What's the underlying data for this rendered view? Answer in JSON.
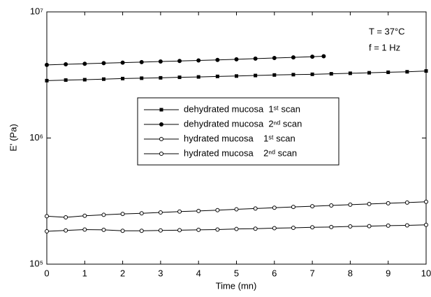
{
  "chart_data": {
    "type": "line",
    "xlabel": "Time (mn)",
    "ylabel": "E' (Pa)",
    "annotations": [
      "T = 37°C",
      "f = 1 Hz"
    ],
    "xlim": [
      0,
      10
    ],
    "xticks": [
      0,
      1,
      2,
      3,
      4,
      5,
      6,
      7,
      8,
      9,
      10
    ],
    "ylim": [
      100000,
      10000000
    ],
    "log_y": true,
    "yticks": [
      {
        "value": 100000,
        "label": "10⁵"
      },
      {
        "value": 1000000,
        "label": "10⁶"
      },
      {
        "value": 10000000,
        "label": "10⁷"
      }
    ],
    "legend": "center",
    "series": [
      {
        "name": "dehydrated mucosa  1ˢᵗ scan",
        "color": "#000000",
        "marker": "square",
        "x": [
          0,
          0.5,
          1,
          1.5,
          2,
          2.5,
          3,
          3.5,
          4,
          4.5,
          5,
          5.5,
          6,
          6.5,
          7,
          7.5,
          8,
          8.5,
          9,
          9.5,
          10
        ],
        "values": [
          2850000,
          2880000,
          2900000,
          2930000,
          2960000,
          2980000,
          3000000,
          3030000,
          3050000,
          3080000,
          3100000,
          3130000,
          3160000,
          3180000,
          3200000,
          3230000,
          3260000,
          3290000,
          3320000,
          3350000,
          3400000
        ]
      },
      {
        "name": "dehydrated mucosa  2ⁿᵈ scan",
        "color": "#000000",
        "marker": "circle",
        "x": [
          0,
          0.5,
          1,
          1.5,
          2,
          2.5,
          3,
          3.5,
          4,
          4.5,
          5,
          5.5,
          6,
          6.5,
          7,
          7.3
        ],
        "values": [
          3800000,
          3840000,
          3880000,
          3920000,
          3960000,
          4000000,
          4040000,
          4080000,
          4120000,
          4160000,
          4210000,
          4260000,
          4310000,
          4360000,
          4410000,
          4450000
        ]
      },
      {
        "name": "hydrated mucosa    1ˢᵗ scan",
        "color": "#000000",
        "marker": "open-circle",
        "x": [
          0,
          0.5,
          1,
          1.5,
          2,
          2.5,
          3,
          3.5,
          4,
          4.5,
          5,
          5.5,
          6,
          6.5,
          7,
          7.5,
          8,
          8.5,
          9,
          9.5,
          10
        ],
        "values": [
          240000,
          235000,
          242000,
          246000,
          250000,
          253000,
          257000,
          261000,
          264000,
          268000,
          272000,
          276000,
          280000,
          284000,
          288000,
          292000,
          296000,
          300000,
          304000,
          308000,
          312000
        ]
      },
      {
        "name": "hydrated mucosa    2ⁿᵈ scan",
        "color": "#000000",
        "marker": "open-circle",
        "x": [
          0,
          0.5,
          1,
          1.5,
          2,
          2.5,
          3,
          3.5,
          4,
          4.5,
          5,
          5.5,
          6,
          6.5,
          7,
          7.5,
          8,
          8.5,
          9,
          9.5,
          10
        ],
        "values": [
          182000,
          185000,
          188000,
          187000,
          184000,
          184000,
          185000,
          186000,
          187000,
          188000,
          190000,
          191000,
          193000,
          194000,
          196000,
          197000,
          199000,
          200000,
          202000,
          203000,
          205000
        ]
      }
    ]
  }
}
